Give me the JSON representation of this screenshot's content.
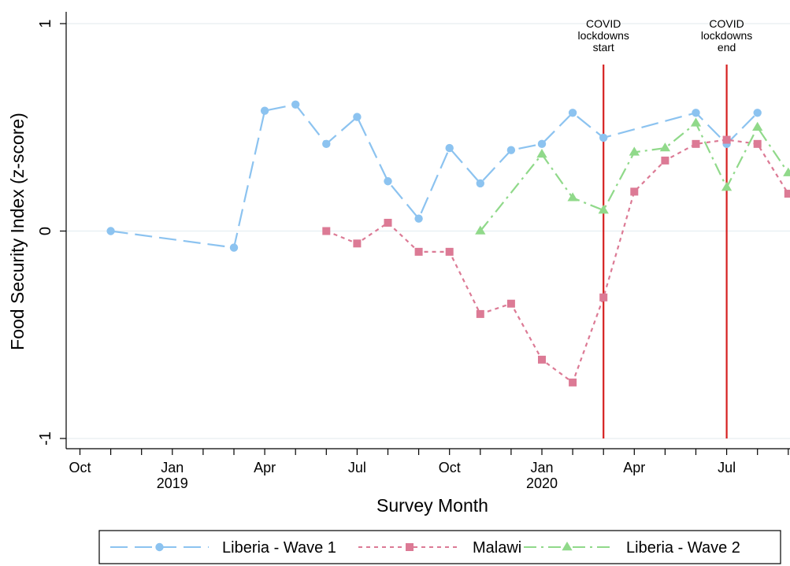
{
  "chart_data": {
    "type": "line",
    "ylabel": "Food Security Index (z-score)",
    "xlabel": "Survey Month",
    "ylim": [
      -1,
      1
    ],
    "yticks": [
      {
        "value": -1,
        "label": "-1"
      },
      {
        "value": 0,
        "label": "0"
      },
      {
        "value": 1,
        "label": "1"
      }
    ],
    "xlim": [
      0,
      23
    ],
    "xticks_labeled": [
      {
        "month": 0,
        "label": "Oct",
        "sublabel": ""
      },
      {
        "month": 3,
        "label": "Jan",
        "sublabel": "2019"
      },
      {
        "month": 6,
        "label": "Apr",
        "sublabel": ""
      },
      {
        "month": 9,
        "label": "Jul",
        "sublabel": ""
      },
      {
        "month": 12,
        "label": "Oct",
        "sublabel": ""
      },
      {
        "month": 15,
        "label": "Jan",
        "sublabel": "2020"
      },
      {
        "month": 18,
        "label": "Apr",
        "sublabel": ""
      },
      {
        "month": 21,
        "label": "Jul",
        "sublabel": ""
      }
    ],
    "grid": true,
    "legend_position": "bottom",
    "series": [
      {
        "name": "Liberia - Wave 1",
        "color": "#8cc3f0",
        "marker": "circle",
        "dash": "22,9",
        "points": [
          {
            "x": "2018-11",
            "y": 0.0
          },
          {
            "x": "2019-03",
            "y": -0.08
          },
          {
            "x": "2019-04",
            "y": 0.58
          },
          {
            "x": "2019-05",
            "y": 0.61
          },
          {
            "x": "2019-06",
            "y": 0.42
          },
          {
            "x": "2019-07",
            "y": 0.55
          },
          {
            "x": "2019-08",
            "y": 0.24
          },
          {
            "x": "2019-09",
            "y": 0.06
          },
          {
            "x": "2019-10",
            "y": 0.4
          },
          {
            "x": "2019-11",
            "y": 0.23
          },
          {
            "x": "2019-12",
            "y": 0.39
          },
          {
            "x": "2020-01",
            "y": 0.42
          },
          {
            "x": "2020-02",
            "y": 0.57
          },
          {
            "x": "2020-03",
            "y": 0.45
          },
          {
            "x": "2020-06",
            "y": 0.57
          },
          {
            "x": "2020-07",
            "y": 0.42
          },
          {
            "x": "2020-08",
            "y": 0.57
          }
        ]
      },
      {
        "name": "Malawi",
        "color": "#dc7a95",
        "marker": "square",
        "dash": "5,5",
        "points": [
          {
            "x": "2019-06",
            "y": 0.0
          },
          {
            "x": "2019-07",
            "y": -0.06
          },
          {
            "x": "2019-08",
            "y": 0.04
          },
          {
            "x": "2019-09",
            "y": -0.1
          },
          {
            "x": "2019-10",
            "y": -0.1
          },
          {
            "x": "2019-11",
            "y": -0.4
          },
          {
            "x": "2019-12",
            "y": -0.35
          },
          {
            "x": "2020-01",
            "y": -0.62
          },
          {
            "x": "2020-02",
            "y": -0.73
          },
          {
            "x": "2020-03",
            "y": -0.32
          },
          {
            "x": "2020-04",
            "y": 0.19
          },
          {
            "x": "2020-05",
            "y": 0.34
          },
          {
            "x": "2020-06",
            "y": 0.42
          },
          {
            "x": "2020-07",
            "y": 0.44
          },
          {
            "x": "2020-08",
            "y": 0.42
          },
          {
            "x": "2020-09",
            "y": 0.18
          }
        ]
      },
      {
        "name": "Liberia - Wave 2",
        "color": "#90d98a",
        "marker": "triangle",
        "dash": "16,6,3,6",
        "points": [
          {
            "x": "2019-11",
            "y": 0.0
          },
          {
            "x": "2020-01",
            "y": 0.37
          },
          {
            "x": "2020-02",
            "y": 0.16
          },
          {
            "x": "2020-03",
            "y": 0.1
          },
          {
            "x": "2020-04",
            "y": 0.38
          },
          {
            "x": "2020-05",
            "y": 0.4
          },
          {
            "x": "2020-06",
            "y": 0.52
          },
          {
            "x": "2020-07",
            "y": 0.21
          },
          {
            "x": "2020-08",
            "y": 0.5
          },
          {
            "x": "2020-09",
            "y": 0.28
          }
        ]
      }
    ],
    "annotations": [
      {
        "x": "2020-03",
        "color": "#d62020",
        "lines": [
          "COVID",
          "lockdowns",
          "start"
        ]
      },
      {
        "x": "2020-07",
        "color": "#d62020",
        "lines": [
          "COVID",
          "lockdowns",
          "end"
        ]
      }
    ]
  }
}
